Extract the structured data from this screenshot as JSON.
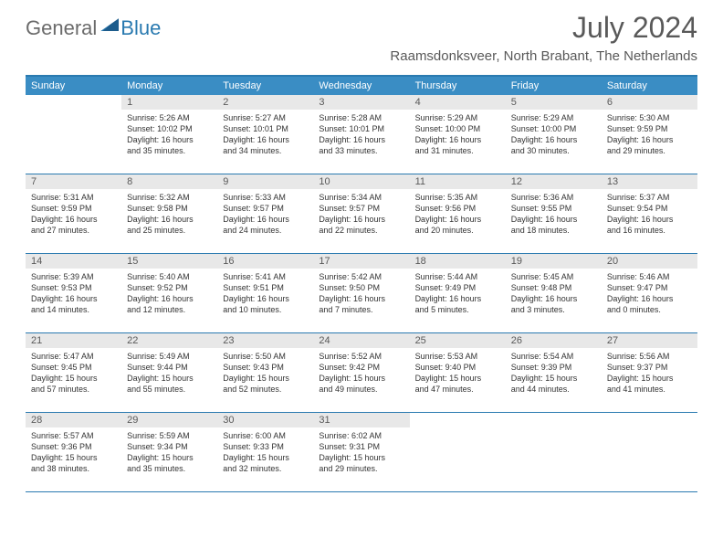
{
  "logo": {
    "text1": "General",
    "text2": "Blue"
  },
  "title": "July 2024",
  "location": "Raamsdonksveer, North Brabant, The Netherlands",
  "colors": {
    "header_bar": "#3a8dc4",
    "border": "#2a7ab0",
    "daynum_bg": "#e8e8e8",
    "title_color": "#595959"
  },
  "weekdays": [
    "Sunday",
    "Monday",
    "Tuesday",
    "Wednesday",
    "Thursday",
    "Friday",
    "Saturday"
  ],
  "weeks": [
    [
      {
        "n": "",
        "sr": "",
        "ss": "",
        "d1": "",
        "d2": ""
      },
      {
        "n": "1",
        "sr": "Sunrise: 5:26 AM",
        "ss": "Sunset: 10:02 PM",
        "d1": "Daylight: 16 hours",
        "d2": "and 35 minutes."
      },
      {
        "n": "2",
        "sr": "Sunrise: 5:27 AM",
        "ss": "Sunset: 10:01 PM",
        "d1": "Daylight: 16 hours",
        "d2": "and 34 minutes."
      },
      {
        "n": "3",
        "sr": "Sunrise: 5:28 AM",
        "ss": "Sunset: 10:01 PM",
        "d1": "Daylight: 16 hours",
        "d2": "and 33 minutes."
      },
      {
        "n": "4",
        "sr": "Sunrise: 5:29 AM",
        "ss": "Sunset: 10:00 PM",
        "d1": "Daylight: 16 hours",
        "d2": "and 31 minutes."
      },
      {
        "n": "5",
        "sr": "Sunrise: 5:29 AM",
        "ss": "Sunset: 10:00 PM",
        "d1": "Daylight: 16 hours",
        "d2": "and 30 minutes."
      },
      {
        "n": "6",
        "sr": "Sunrise: 5:30 AM",
        "ss": "Sunset: 9:59 PM",
        "d1": "Daylight: 16 hours",
        "d2": "and 29 minutes."
      }
    ],
    [
      {
        "n": "7",
        "sr": "Sunrise: 5:31 AM",
        "ss": "Sunset: 9:59 PM",
        "d1": "Daylight: 16 hours",
        "d2": "and 27 minutes."
      },
      {
        "n": "8",
        "sr": "Sunrise: 5:32 AM",
        "ss": "Sunset: 9:58 PM",
        "d1": "Daylight: 16 hours",
        "d2": "and 25 minutes."
      },
      {
        "n": "9",
        "sr": "Sunrise: 5:33 AM",
        "ss": "Sunset: 9:57 PM",
        "d1": "Daylight: 16 hours",
        "d2": "and 24 minutes."
      },
      {
        "n": "10",
        "sr": "Sunrise: 5:34 AM",
        "ss": "Sunset: 9:57 PM",
        "d1": "Daylight: 16 hours",
        "d2": "and 22 minutes."
      },
      {
        "n": "11",
        "sr": "Sunrise: 5:35 AM",
        "ss": "Sunset: 9:56 PM",
        "d1": "Daylight: 16 hours",
        "d2": "and 20 minutes."
      },
      {
        "n": "12",
        "sr": "Sunrise: 5:36 AM",
        "ss": "Sunset: 9:55 PM",
        "d1": "Daylight: 16 hours",
        "d2": "and 18 minutes."
      },
      {
        "n": "13",
        "sr": "Sunrise: 5:37 AM",
        "ss": "Sunset: 9:54 PM",
        "d1": "Daylight: 16 hours",
        "d2": "and 16 minutes."
      }
    ],
    [
      {
        "n": "14",
        "sr": "Sunrise: 5:39 AM",
        "ss": "Sunset: 9:53 PM",
        "d1": "Daylight: 16 hours",
        "d2": "and 14 minutes."
      },
      {
        "n": "15",
        "sr": "Sunrise: 5:40 AM",
        "ss": "Sunset: 9:52 PM",
        "d1": "Daylight: 16 hours",
        "d2": "and 12 minutes."
      },
      {
        "n": "16",
        "sr": "Sunrise: 5:41 AM",
        "ss": "Sunset: 9:51 PM",
        "d1": "Daylight: 16 hours",
        "d2": "and 10 minutes."
      },
      {
        "n": "17",
        "sr": "Sunrise: 5:42 AM",
        "ss": "Sunset: 9:50 PM",
        "d1": "Daylight: 16 hours",
        "d2": "and 7 minutes."
      },
      {
        "n": "18",
        "sr": "Sunrise: 5:44 AM",
        "ss": "Sunset: 9:49 PM",
        "d1": "Daylight: 16 hours",
        "d2": "and 5 minutes."
      },
      {
        "n": "19",
        "sr": "Sunrise: 5:45 AM",
        "ss": "Sunset: 9:48 PM",
        "d1": "Daylight: 16 hours",
        "d2": "and 3 minutes."
      },
      {
        "n": "20",
        "sr": "Sunrise: 5:46 AM",
        "ss": "Sunset: 9:47 PM",
        "d1": "Daylight: 16 hours",
        "d2": "and 0 minutes."
      }
    ],
    [
      {
        "n": "21",
        "sr": "Sunrise: 5:47 AM",
        "ss": "Sunset: 9:45 PM",
        "d1": "Daylight: 15 hours",
        "d2": "and 57 minutes."
      },
      {
        "n": "22",
        "sr": "Sunrise: 5:49 AM",
        "ss": "Sunset: 9:44 PM",
        "d1": "Daylight: 15 hours",
        "d2": "and 55 minutes."
      },
      {
        "n": "23",
        "sr": "Sunrise: 5:50 AM",
        "ss": "Sunset: 9:43 PM",
        "d1": "Daylight: 15 hours",
        "d2": "and 52 minutes."
      },
      {
        "n": "24",
        "sr": "Sunrise: 5:52 AM",
        "ss": "Sunset: 9:42 PM",
        "d1": "Daylight: 15 hours",
        "d2": "and 49 minutes."
      },
      {
        "n": "25",
        "sr": "Sunrise: 5:53 AM",
        "ss": "Sunset: 9:40 PM",
        "d1": "Daylight: 15 hours",
        "d2": "and 47 minutes."
      },
      {
        "n": "26",
        "sr": "Sunrise: 5:54 AM",
        "ss": "Sunset: 9:39 PM",
        "d1": "Daylight: 15 hours",
        "d2": "and 44 minutes."
      },
      {
        "n": "27",
        "sr": "Sunrise: 5:56 AM",
        "ss": "Sunset: 9:37 PM",
        "d1": "Daylight: 15 hours",
        "d2": "and 41 minutes."
      }
    ],
    [
      {
        "n": "28",
        "sr": "Sunrise: 5:57 AM",
        "ss": "Sunset: 9:36 PM",
        "d1": "Daylight: 15 hours",
        "d2": "and 38 minutes."
      },
      {
        "n": "29",
        "sr": "Sunrise: 5:59 AM",
        "ss": "Sunset: 9:34 PM",
        "d1": "Daylight: 15 hours",
        "d2": "and 35 minutes."
      },
      {
        "n": "30",
        "sr": "Sunrise: 6:00 AM",
        "ss": "Sunset: 9:33 PM",
        "d1": "Daylight: 15 hours",
        "d2": "and 32 minutes."
      },
      {
        "n": "31",
        "sr": "Sunrise: 6:02 AM",
        "ss": "Sunset: 9:31 PM",
        "d1": "Daylight: 15 hours",
        "d2": "and 29 minutes."
      },
      {
        "n": "",
        "sr": "",
        "ss": "",
        "d1": "",
        "d2": ""
      },
      {
        "n": "",
        "sr": "",
        "ss": "",
        "d1": "",
        "d2": ""
      },
      {
        "n": "",
        "sr": "",
        "ss": "",
        "d1": "",
        "d2": ""
      }
    ]
  ]
}
